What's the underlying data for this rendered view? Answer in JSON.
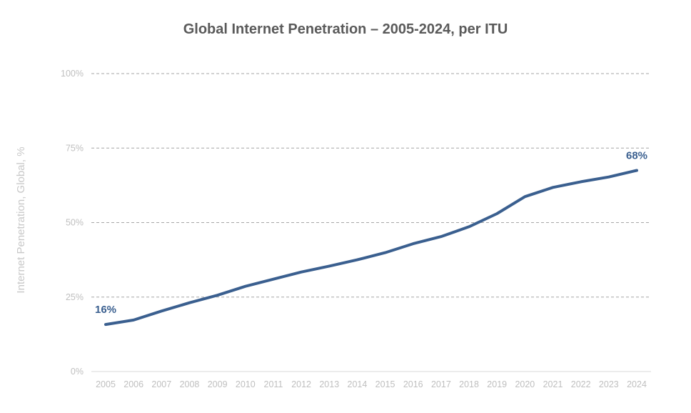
{
  "chart_data": {
    "type": "line",
    "title": "Global Internet Penetration – 2005-2024, per ITU",
    "xlabel": "",
    "ylabel": "Internet Penetration, Global, %",
    "x": [
      "2005",
      "2006",
      "2007",
      "2008",
      "2009",
      "2010",
      "2011",
      "2012",
      "2013",
      "2014",
      "2015",
      "2016",
      "2017",
      "2018",
      "2019",
      "2020",
      "2021",
      "2022",
      "2023",
      "2024"
    ],
    "series": [
      {
        "values": [
          15.8,
          17.3,
          20.3,
          23.1,
          25.6,
          28.6,
          31.0,
          33.4,
          35.4,
          37.5,
          39.9,
          42.9,
          45.3,
          48.6,
          53.0,
          58.7,
          61.8,
          63.7,
          65.3,
          67.5
        ],
        "color": "#3a5f8f"
      }
    ],
    "ylim": [
      0,
      100
    ],
    "yticks": [
      0,
      25,
      50,
      75,
      100
    ],
    "ytick_labels": [
      "0%",
      "25%",
      "50%",
      "75%",
      "100%"
    ],
    "grid": "horizontal-dashed",
    "legend": "none",
    "annotations": [
      {
        "x": "2005",
        "text": "16%"
      },
      {
        "x": "2024",
        "text": "68%"
      }
    ]
  }
}
